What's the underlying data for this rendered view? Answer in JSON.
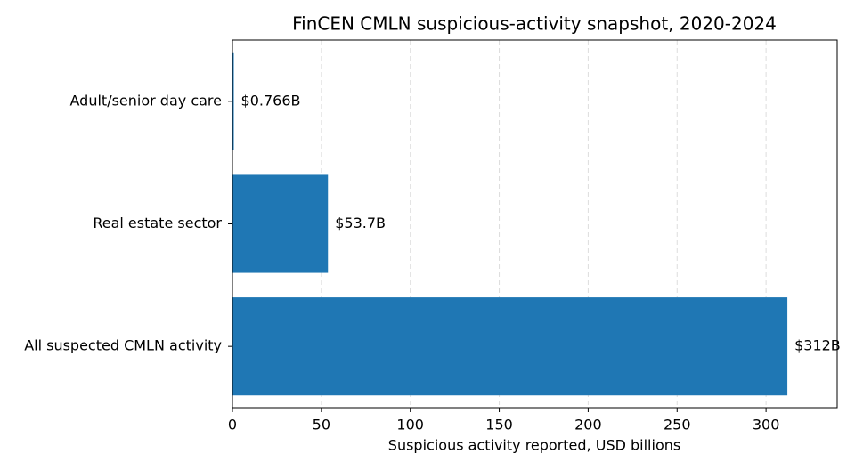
{
  "chart_data": {
    "type": "barh",
    "title": "FinCEN CMLN suspicious-activity snapshot, 2020-2024",
    "xlabel": "Suspicious activity reported, USD billions",
    "categories": [
      "Adult/senior day care",
      "Real estate sector",
      "All suspected CMLN activity"
    ],
    "values": [
      0.766,
      53.7,
      312
    ],
    "value_labels": [
      "$0.766B",
      "$53.7B",
      "$312B"
    ],
    "color": "#1f77b4",
    "xlim": [
      0,
      340
    ],
    "xticks": [
      0,
      50,
      100,
      150,
      200,
      250,
      300
    ],
    "grid": true
  }
}
